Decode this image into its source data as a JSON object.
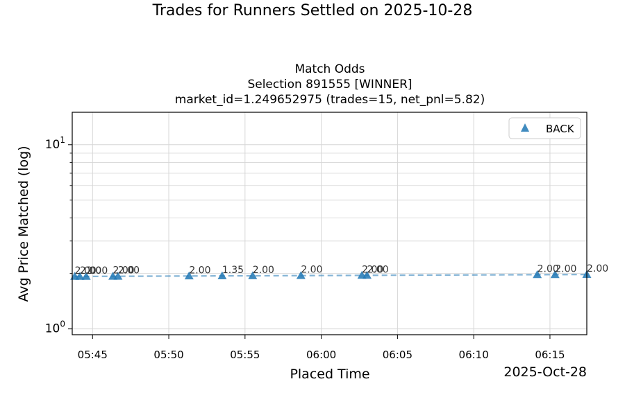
{
  "figure": {
    "suptitle": "Trades for Runners Settled on 2025-10-28"
  },
  "chart_data": {
    "type": "scatter",
    "title_lines": [
      "Match Odds",
      "Selection 891555 [WINNER]",
      "market_id=1.249652975 (trades=15, net_pnl=5.82)"
    ],
    "title_color": "#008000",
    "xlabel": "Placed Time",
    "ylabel": "Avg Price Matched (log)",
    "x_offset_label": "2025-Oct-28",
    "x_ticks": [
      "05:45",
      "05:50",
      "05:55",
      "06:00",
      "06:05",
      "06:10",
      "06:15"
    ],
    "xlim": [
      "05:43:40",
      "06:17:25"
    ],
    "y_scale": "log",
    "ylim": [
      0.93,
      15
    ],
    "y_ticks": [
      1,
      10
    ],
    "grid": true,
    "legend": {
      "position": "top-right",
      "entries": [
        "BACK"
      ]
    },
    "series": [
      {
        "name": "BACK",
        "marker": "triangle",
        "color": "#1f77b4",
        "line_style": "dashed",
        "points": [
          {
            "time": "05:43:50",
            "price": 2.0,
            "label": "2.00"
          },
          {
            "time": "05:44:10",
            "price": 2.0,
            "label": "2.00"
          },
          {
            "time": "05:44:35",
            "price": 2.0,
            "label": "2.00"
          },
          {
            "time": "05:46:20",
            "price": 2.0,
            "label": "2.00"
          },
          {
            "time": "05:46:40",
            "price": 2.0,
            "label": "2.00"
          },
          {
            "time": "05:51:20",
            "price": 2.0,
            "label": "2.00"
          },
          {
            "time": "05:53:30",
            "price": 1.35,
            "label": "1.35"
          },
          {
            "time": "05:55:30",
            "price": 2.0,
            "label": "2.00"
          },
          {
            "time": "05:58:40",
            "price": 2.0,
            "label": "2.00"
          },
          {
            "time": "06:02:40",
            "price": 2.0,
            "label": "2.00"
          },
          {
            "time": "06:03:00",
            "price": 2.0,
            "label": "2.00"
          },
          {
            "time": "06:14:10",
            "price": 2.0,
            "label": "2.00"
          },
          {
            "time": "06:15:20",
            "price": 2.0,
            "label": "2.00"
          },
          {
            "time": "06:17:25",
            "price": 2.0,
            "label": "2.00"
          }
        ]
      }
    ]
  }
}
